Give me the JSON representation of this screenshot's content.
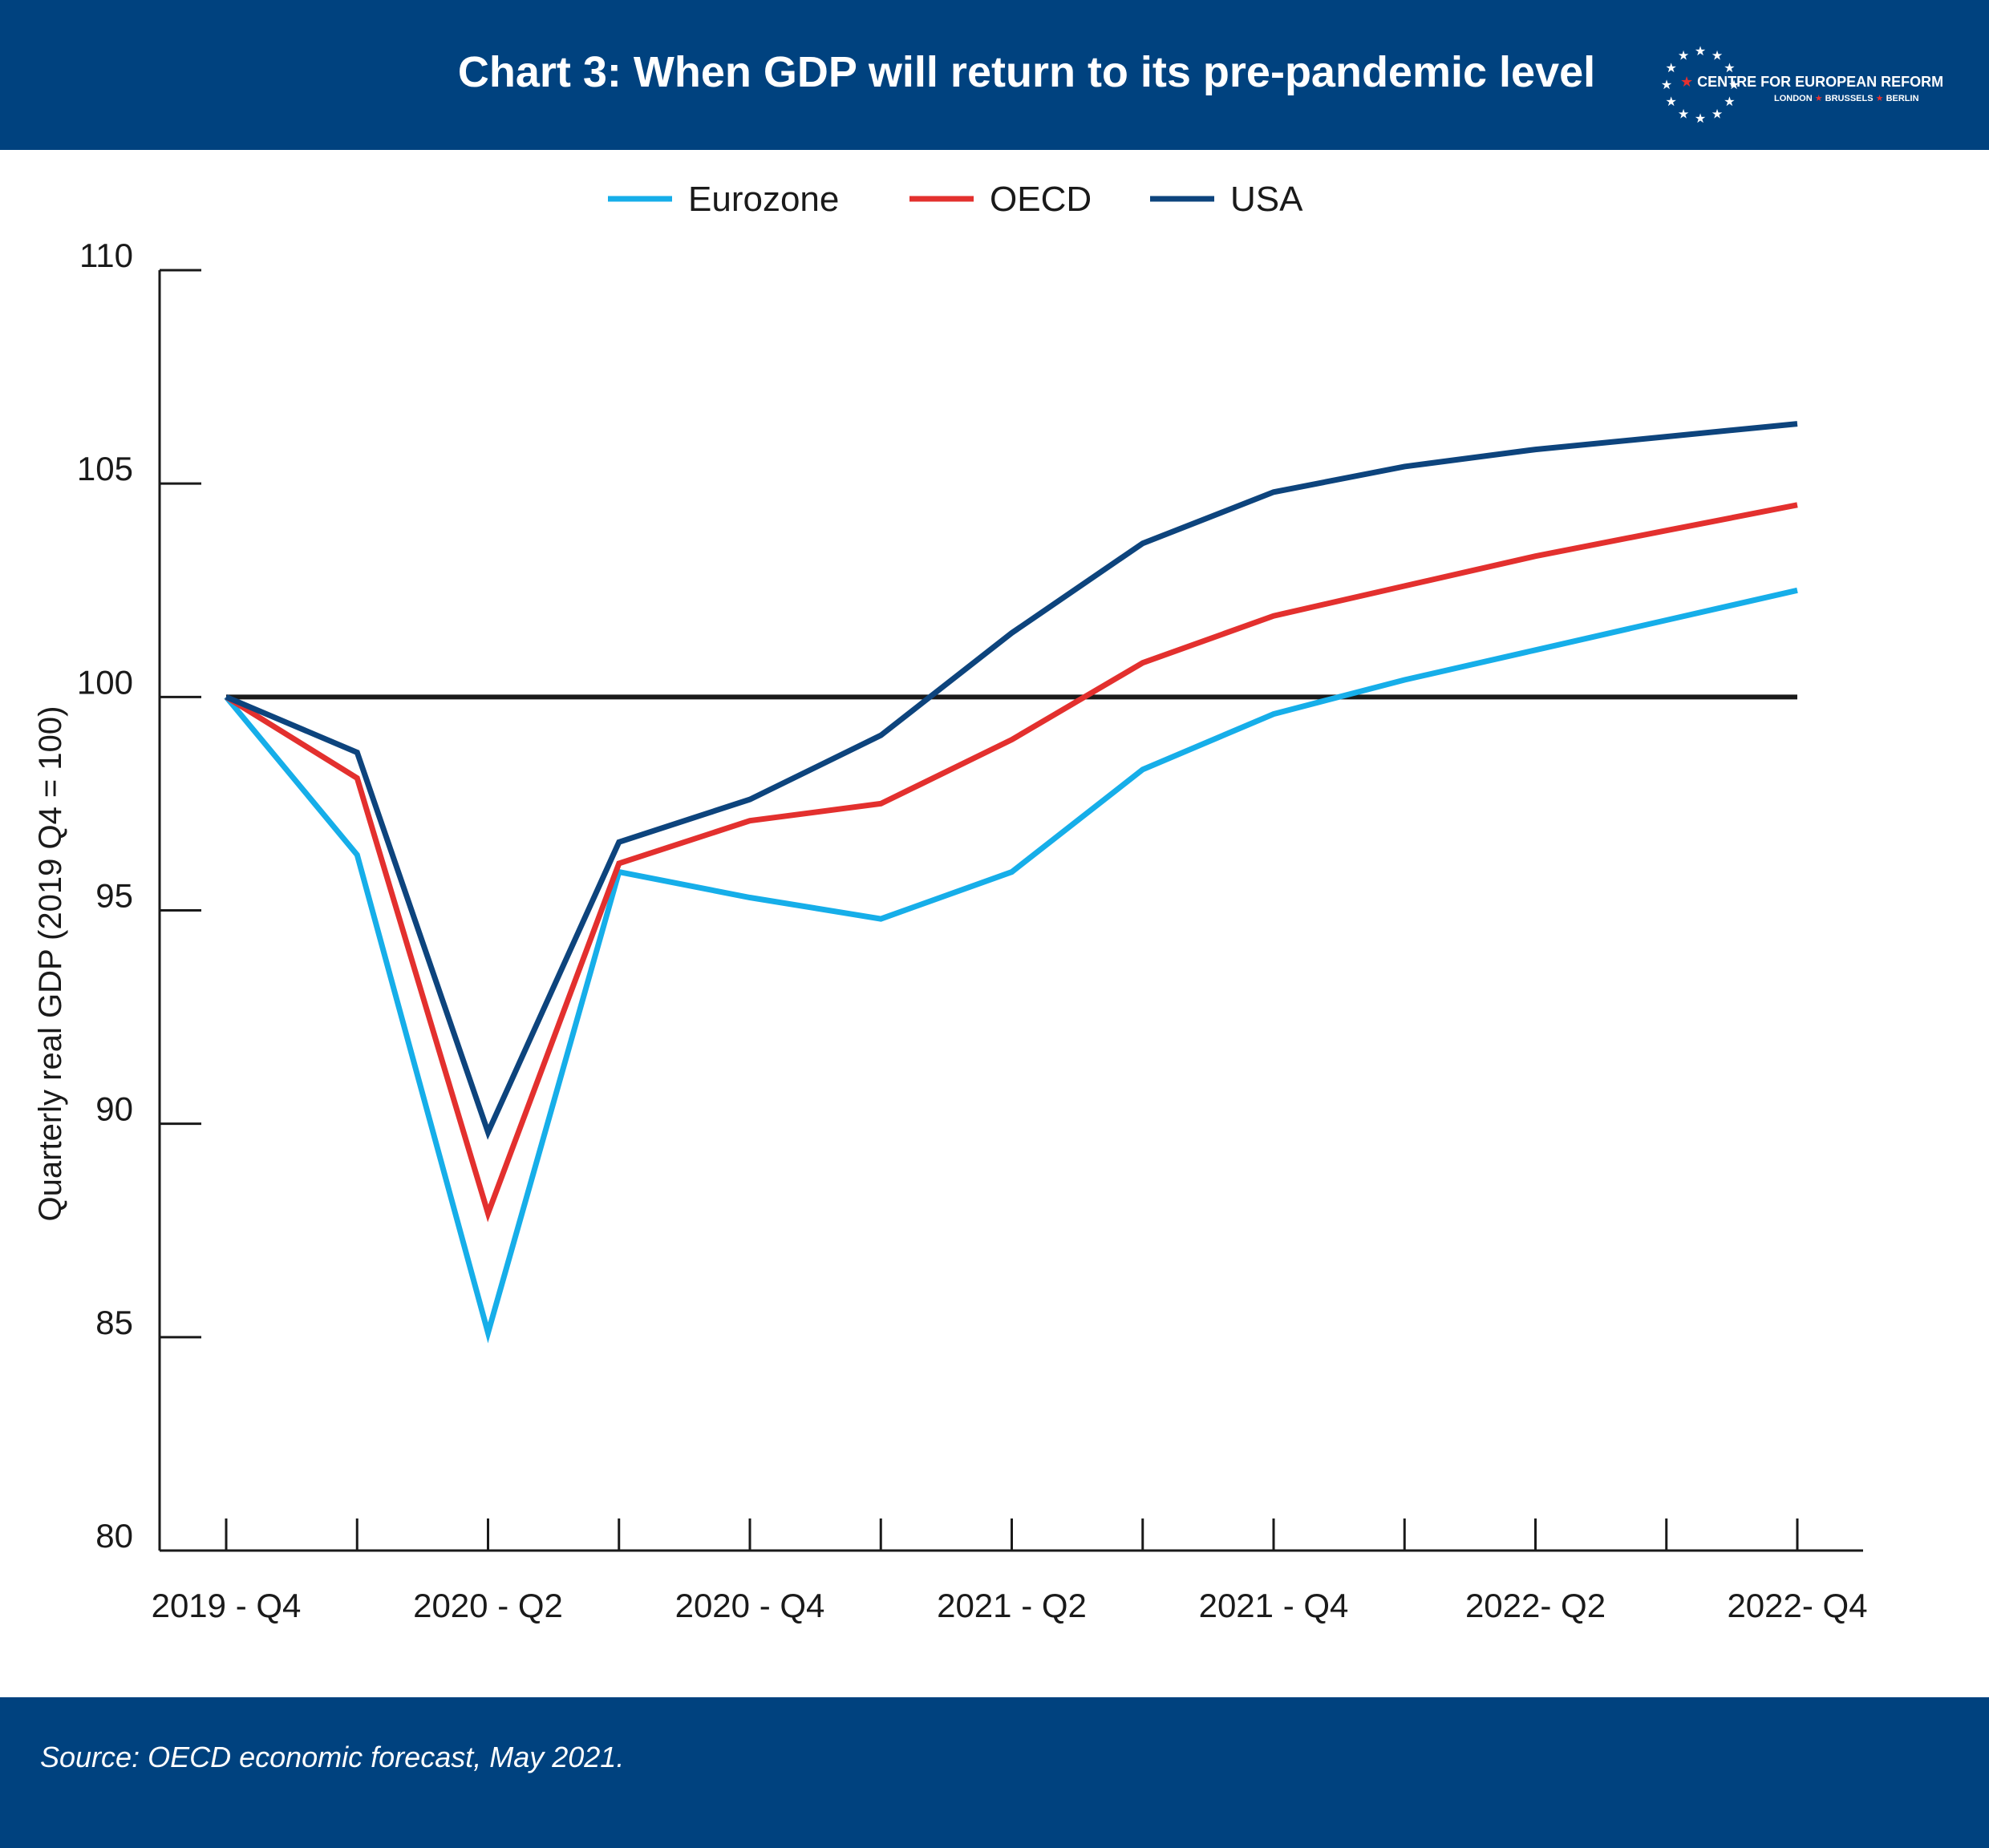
{
  "header": {
    "title": "Chart 3: When GDP will return to its pre-pandemic level",
    "logo_line1": "CENTRE FOR EUROPEAN REFORM",
    "logo_line2_parts": [
      "LONDON",
      "BRUSSELS",
      "BERLIN"
    ],
    "logo_star": "★"
  },
  "footer": {
    "source": "Source: OECD economic forecast, May 2021."
  },
  "colors": {
    "brand": "#00427f",
    "eurozone": "#16aee9",
    "oecd": "#e3302e",
    "usa": "#0d447d",
    "baseline": "#1a1a1a"
  },
  "chart_data": {
    "type": "line",
    "title": "",
    "xlabel": "",
    "ylabel": "Quarterly real GDP (2019 Q4 = 100)",
    "ylim": [
      80,
      110
    ],
    "yticks": [
      80,
      85,
      90,
      95,
      100,
      105,
      110
    ],
    "x": [
      "2019 - Q4",
      "2020 - Q1",
      "2020 - Q2",
      "2020 - Q3",
      "2020 - Q4",
      "2021 - Q1",
      "2021 - Q2",
      "2021 - Q3",
      "2021 - Q4",
      "2022 - Q1",
      "2022 - Q2",
      "2022 - Q3",
      "2022 - Q4"
    ],
    "xtick_labels": [
      {
        "index": 0,
        "label": "2019 - Q4"
      },
      {
        "index": 2,
        "label": "2020 - Q2"
      },
      {
        "index": 4,
        "label": "2020 - Q4"
      },
      {
        "index": 6,
        "label": "2021 - Q2"
      },
      {
        "index": 8,
        "label": "2021 - Q4"
      },
      {
        "index": 10,
        "label": "2022- Q2"
      },
      {
        "index": 12,
        "label": "2022- Q4"
      }
    ],
    "reference_line": 100,
    "legend_position": "top-center",
    "grid": false,
    "series": [
      {
        "name": "Eurozone",
        "color": "#16aee9",
        "values": [
          100,
          96.3,
          85.1,
          95.9,
          95.3,
          94.8,
          95.9,
          98.3,
          99.6,
          100.4,
          101.1,
          101.8,
          102.5
        ]
      },
      {
        "name": "OECD",
        "color": "#e3302e",
        "values": [
          100,
          98.1,
          87.9,
          96.1,
          97.1,
          97.5,
          99.0,
          100.8,
          101.9,
          102.6,
          103.3,
          103.9,
          104.5
        ]
      },
      {
        "name": "USA",
        "color": "#0d447d",
        "values": [
          100,
          98.7,
          89.8,
          96.6,
          97.6,
          99.1,
          101.5,
          103.6,
          104.8,
          105.4,
          105.8,
          106.1,
          106.4
        ]
      }
    ]
  }
}
